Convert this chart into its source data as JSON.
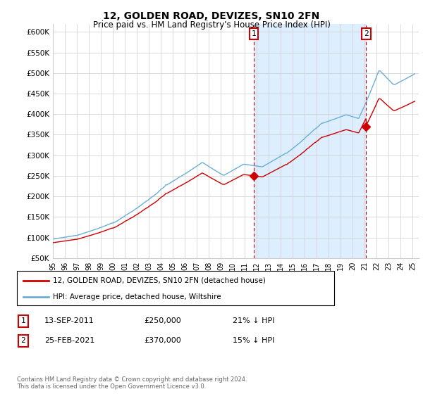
{
  "title": "12, GOLDEN ROAD, DEVIZES, SN10 2FN",
  "subtitle": "Price paid vs. HM Land Registry's House Price Index (HPI)",
  "hpi_color": "#6baed6",
  "property_color": "#cc0000",
  "sale1_year": 2011.75,
  "sale1_value": 250000,
  "sale2_year": 2021.12,
  "sale2_value": 370000,
  "vline_color": "#cc0000",
  "shade_color": "#ddeeff",
  "shade_alpha": 0.5,
  "ylim_min": 50000,
  "ylim_max": 620000,
  "ytick_values": [
    50000,
    100000,
    150000,
    200000,
    250000,
    300000,
    350000,
    400000,
    450000,
    500000,
    550000,
    600000
  ],
  "xlim_min": 1995.0,
  "xlim_max": 2025.5,
  "legend_line1": "12, GOLDEN ROAD, DEVIZES, SN10 2FN (detached house)",
  "legend_line2": "HPI: Average price, detached house, Wiltshire",
  "annotation1_date": "13-SEP-2011",
  "annotation1_price": "£250,000",
  "annotation1_hpi": "21% ↓ HPI",
  "annotation2_date": "25-FEB-2021",
  "annotation2_price": "£370,000",
  "annotation2_hpi": "15% ↓ HPI",
  "footer": "Contains HM Land Registry data © Crown copyright and database right 2024.\nThis data is licensed under the Open Government Licence v3.0.",
  "background_color": "#ffffff",
  "grid_color": "#cccccc"
}
